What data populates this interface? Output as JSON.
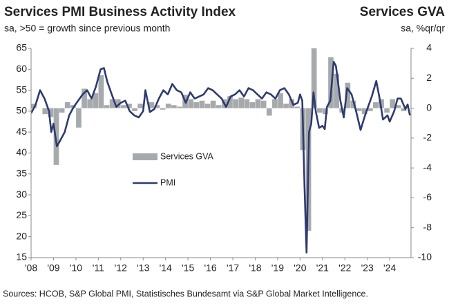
{
  "chart_data": {
    "type": "bar+line",
    "title": "Services PMI Business Activity Index",
    "subtitle": "sa, >50 = growth since previous month",
    "y2_title": "Services GVA",
    "y2_subtitle": "sa, %qr/qr",
    "source": "Sources: HCOB, S&P Global PMI, Statistisches Bundesamt via S&P Global Market Intelligence.",
    "xlim": [
      2008,
      2024.95
    ],
    "xticks": [
      {
        "value": 2008,
        "label": "'08"
      },
      {
        "value": 2009,
        "label": "'09"
      },
      {
        "value": 2010,
        "label": "'10"
      },
      {
        "value": 2011,
        "label": "'11"
      },
      {
        "value": 2012,
        "label": "'12"
      },
      {
        "value": 2013,
        "label": "'13"
      },
      {
        "value": 2014,
        "label": "'14"
      },
      {
        "value": 2015,
        "label": "'15"
      },
      {
        "value": 2016,
        "label": "'16"
      },
      {
        "value": 2017,
        "label": "'17"
      },
      {
        "value": 2018,
        "label": "'18"
      },
      {
        "value": 2019,
        "label": "'19"
      },
      {
        "value": 2020,
        "label": "'20"
      },
      {
        "value": 2021,
        "label": "'21"
      },
      {
        "value": 2022,
        "label": "'22"
      },
      {
        "value": 2023,
        "label": "'23"
      },
      {
        "value": 2024,
        "label": "'24"
      }
    ],
    "ylim": [
      15,
      65
    ],
    "yticks": [
      15,
      20,
      25,
      30,
      35,
      40,
      45,
      50,
      55,
      60,
      65
    ],
    "y2lim": [
      -10,
      4
    ],
    "y2ticks": [
      -10,
      -8,
      -6,
      -4,
      -2,
      0,
      2,
      4
    ],
    "series": [
      {
        "name": "Services GVA",
        "type": "bar",
        "axis": "y2",
        "color": "#a7aaad",
        "x": [
          2008.125,
          2008.375,
          2008.625,
          2008.875,
          2009.125,
          2009.375,
          2009.625,
          2009.875,
          2010.125,
          2010.375,
          2010.625,
          2010.875,
          2011.125,
          2011.375,
          2011.625,
          2011.875,
          2012.125,
          2012.375,
          2012.625,
          2012.875,
          2013.125,
          2013.375,
          2013.625,
          2013.875,
          2014.125,
          2014.375,
          2014.625,
          2014.875,
          2015.125,
          2015.375,
          2015.625,
          2015.875,
          2016.125,
          2016.375,
          2016.625,
          2016.875,
          2017.125,
          2017.375,
          2017.625,
          2017.875,
          2018.125,
          2018.375,
          2018.625,
          2018.875,
          2019.125,
          2019.375,
          2019.625,
          2019.875,
          2020.125,
          2020.375,
          2020.625,
          2020.875,
          2021.125,
          2021.375,
          2021.625,
          2021.875,
          2022.125,
          2022.375,
          2022.625,
          2022.875,
          2023.125,
          2023.375,
          2023.625,
          2023.875,
          2024.125,
          2024.375,
          2024.625
        ],
        "values": [
          0.3,
          0.0,
          -0.4,
          -0.6,
          -3.8,
          -0.3,
          0.4,
          0.2,
          -1.3,
          1.3,
          0.6,
          1.0,
          2.2,
          0.2,
          0.6,
          0.6,
          0.2,
          0.3,
          -0.2,
          0.3,
          0.0,
          0.4,
          0.2,
          -0.1,
          0.3,
          0.2,
          0.1,
          0.9,
          0.6,
          0.4,
          0.5,
          0.3,
          0.5,
          0.2,
          0.6,
          0.8,
          0.6,
          0.7,
          0.6,
          0.4,
          0.6,
          0.5,
          -0.5,
          0.6,
          1.0,
          0.3,
          0.6,
          0.1,
          -2.8,
          -8.2,
          4.5,
          -0.3,
          -0.4,
          3.4,
          2.3,
          -0.3,
          1.7,
          0.5,
          -0.2,
          -0.4,
          -0.2,
          0.4,
          0.6,
          -0.3,
          0.6,
          0.2,
          -0.2
        ]
      },
      {
        "name": "PMI",
        "type": "line",
        "axis": "y",
        "color": "#2e3a6e",
        "x": [
          2008.0,
          2008.2,
          2008.4,
          2008.6,
          2008.8,
          2008.9,
          2009.0,
          2009.15,
          2009.3,
          2009.5,
          2009.7,
          2009.9,
          2010.1,
          2010.3,
          2010.5,
          2010.7,
          2010.9,
          2011.1,
          2011.25,
          2011.4,
          2011.6,
          2011.8,
          2012.0,
          2012.2,
          2012.4,
          2012.6,
          2012.8,
          2013.0,
          2013.1,
          2013.3,
          2013.5,
          2013.7,
          2013.9,
          2014.1,
          2014.3,
          2014.5,
          2014.7,
          2014.9,
          2015.1,
          2015.3,
          2015.5,
          2015.7,
          2015.9,
          2016.1,
          2016.3,
          2016.5,
          2016.7,
          2016.9,
          2017.1,
          2017.3,
          2017.5,
          2017.7,
          2017.9,
          2018.1,
          2018.3,
          2018.5,
          2018.7,
          2018.9,
          2019.1,
          2019.3,
          2019.5,
          2019.7,
          2019.9,
          2020.0,
          2020.1,
          2020.2,
          2020.29,
          2020.4,
          2020.5,
          2020.6,
          2020.7,
          2020.85,
          2021.0,
          2021.1,
          2021.2,
          2021.35,
          2021.5,
          2021.6,
          2021.8,
          2021.95,
          2022.1,
          2022.3,
          2022.5,
          2022.7,
          2022.9,
          2023.0,
          2023.2,
          2023.4,
          2023.55,
          2023.7,
          2023.9,
          2024.0,
          2024.2,
          2024.35,
          2024.5,
          2024.7,
          2024.8,
          2024.9
        ],
        "values": [
          49.5,
          51.5,
          55,
          53,
          50,
          45,
          47,
          41.6,
          43,
          45,
          49,
          51,
          52.5,
          54,
          55,
          53,
          56,
          60,
          60.3,
          57,
          54,
          51,
          52,
          52.5,
          50,
          49,
          48.5,
          50,
          55,
          49.8,
          50.5,
          53,
          55,
          54,
          56.5,
          55,
          54.5,
          52,
          54.5,
          53,
          53.5,
          54,
          55.5,
          55,
          54,
          53,
          51,
          53.5,
          54,
          55,
          53.5,
          55.5,
          55,
          54,
          53,
          54.5,
          54,
          53,
          55,
          55.5,
          54,
          51.5,
          52,
          54,
          52.5,
          31.7,
          16.2,
          45,
          47,
          54.5,
          50,
          46,
          46.5,
          45.7,
          51,
          52.5,
          61.8,
          60.8,
          52.5,
          48.5,
          55.5,
          54,
          50,
          45.5,
          49,
          50.5,
          53.5,
          57.2,
          53,
          48,
          49,
          47.5,
          50,
          53,
          53,
          50.5,
          51.6,
          49
        ]
      }
    ]
  }
}
